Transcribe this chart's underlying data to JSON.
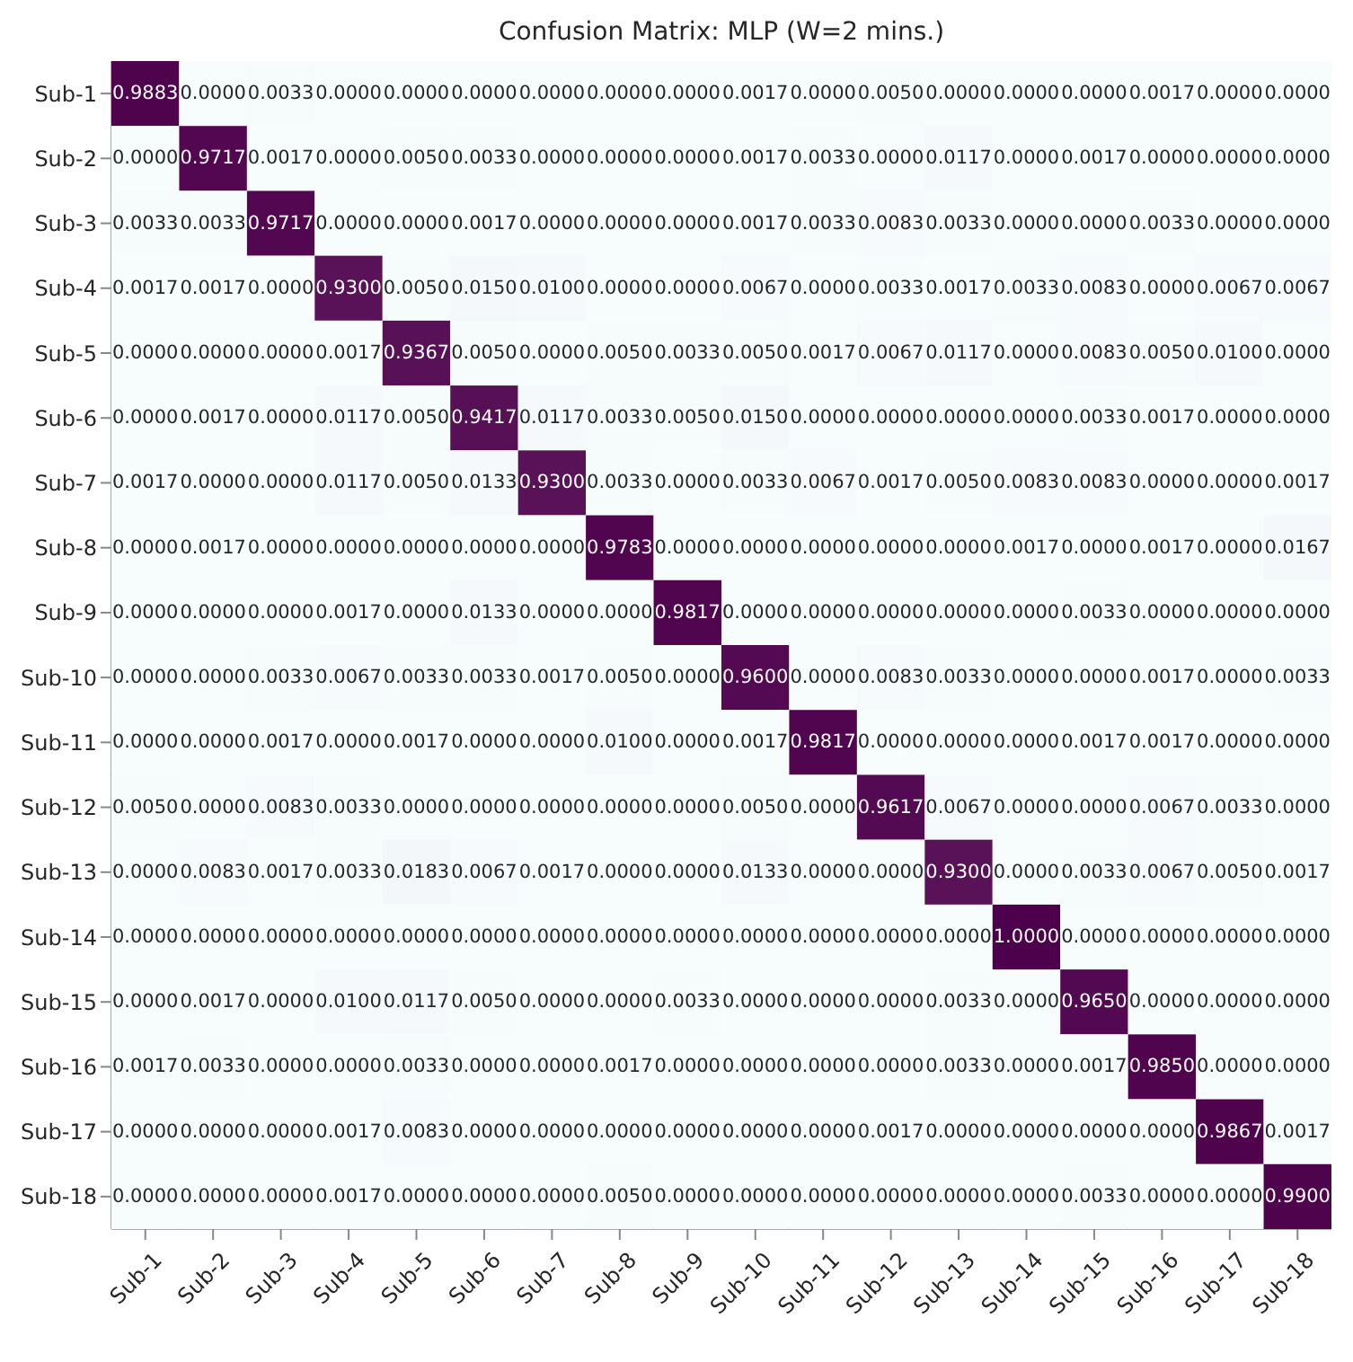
{
  "chart_data": {
    "type": "heatmap",
    "title": "Confusion Matrix:  MLP (W=2 mins.)",
    "categories": [
      "Sub-1",
      "Sub-2",
      "Sub-3",
      "Sub-4",
      "Sub-5",
      "Sub-6",
      "Sub-7",
      "Sub-8",
      "Sub-9",
      "Sub-10",
      "Sub-11",
      "Sub-12",
      "Sub-13",
      "Sub-14",
      "Sub-15",
      "Sub-16",
      "Sub-17",
      "Sub-18"
    ],
    "y_categories": [
      "Sub-1",
      "Sub-2",
      "Sub-3",
      "Sub-4",
      "Sub-5",
      "Sub-6",
      "Sub-7",
      "Sub-8",
      "Sub-9",
      "Sub-10",
      "Sub-11",
      "Sub-12",
      "Sub-13",
      "Sub-14",
      "Sub-15",
      "Sub-16",
      "Sub-17",
      "Sub-18"
    ],
    "colors": [
      "#f7fcfd",
      "#4d004b"
    ],
    "cell_labels": [
      [
        "0.9883",
        "0.0000",
        "0.0033",
        "0.0000",
        "0.0000",
        "0.0000",
        "0.0000",
        "0.0000",
        "0.0000",
        "0.0017",
        "0.0000",
        "0.0050",
        "0.0000",
        "0.0000",
        "0.0000",
        "0.0017",
        "0.0000",
        "0.0000"
      ],
      [
        "0.0000",
        "0.9717",
        "0.0017",
        "0.0000",
        "0.0050",
        "0.0033",
        "0.0000",
        "0.0000",
        "0.0000",
        "0.0017",
        "0.0033",
        "0.0000",
        "0.0117",
        "0.0000",
        "0.0017",
        "0.0000",
        "0.0000",
        "0.0000"
      ],
      [
        "0.0033",
        "0.0033",
        "0.9717",
        "0.0000",
        "0.0000",
        "0.0017",
        "0.0000",
        "0.0000",
        "0.0000",
        "0.0017",
        "0.0033",
        "0.0083",
        "0.0033",
        "0.0000",
        "0.0000",
        "0.0033",
        "0.0000",
        "0.0000"
      ],
      [
        "0.0017",
        "0.0017",
        "0.0000",
        "0.9300",
        "0.0050",
        "0.0150",
        "0.0100",
        "0.0000",
        "0.0000",
        "0.0067",
        "0.0000",
        "0.0033",
        "0.0017",
        "0.0033",
        "0.0083",
        "0.0000",
        "0.0067",
        "0.0067"
      ],
      [
        "0.0000",
        "0.0000",
        "0.0000",
        "0.0017",
        "0.9367",
        "0.0050",
        "0.0000",
        "0.0050",
        "0.0033",
        "0.0050",
        "0.0017",
        "0.0067",
        "0.0117",
        "0.0000",
        "0.0083",
        "0.0050",
        "0.0100",
        "0.0000"
      ],
      [
        "0.0000",
        "0.0017",
        "0.0000",
        "0.0117",
        "0.0050",
        "0.9417",
        "0.0117",
        "0.0033",
        "0.0050",
        "0.0150",
        "0.0000",
        "0.0000",
        "0.0000",
        "0.0000",
        "0.0033",
        "0.0017",
        "0.0000",
        "0.0000"
      ],
      [
        "0.0017",
        "0.0000",
        "0.0000",
        "0.0117",
        "0.0050",
        "0.0133",
        "0.9300",
        "0.0033",
        "0.0000",
        "0.0033",
        "0.0067",
        "0.0017",
        "0.0050",
        "0.0083",
        "0.0083",
        "0.0000",
        "0.0000",
        "0.0017"
      ],
      [
        "0.0000",
        "0.0017",
        "0.0000",
        "0.0000",
        "0.0000",
        "0.0000",
        "0.0000",
        "0.9783",
        "0.0000",
        "0.0000",
        "0.0000",
        "0.0000",
        "0.0000",
        "0.0017",
        "0.0000",
        "0.0017",
        "0.0000",
        "0.0167"
      ],
      [
        "0.0000",
        "0.0000",
        "0.0000",
        "0.0017",
        "0.0000",
        "0.0133",
        "0.0000",
        "0.0000",
        "0.9817",
        "0.0000",
        "0.0000",
        "0.0000",
        "0.0000",
        "0.0000",
        "0.0033",
        "0.0000",
        "0.0000",
        "0.0000"
      ],
      [
        "0.0000",
        "0.0000",
        "0.0033",
        "0.0067",
        "0.0033",
        "0.0033",
        "0.0017",
        "0.0050",
        "0.0000",
        "0.9600",
        "0.0000",
        "0.0083",
        "0.0033",
        "0.0000",
        "0.0000",
        "0.0017",
        "0.0000",
        "0.0033"
      ],
      [
        "0.0000",
        "0.0000",
        "0.0017",
        "0.0000",
        "0.0017",
        "0.0000",
        "0.0000",
        "0.0100",
        "0.0000",
        "0.0017",
        "0.9817",
        "0.0000",
        "0.0000",
        "0.0000",
        "0.0017",
        "0.0017",
        "0.0000",
        "0.0000"
      ],
      [
        "0.0050",
        "0.0000",
        "0.0083",
        "0.0033",
        "0.0000",
        "0.0000",
        "0.0000",
        "0.0000",
        "0.0000",
        "0.0050",
        "0.0000",
        "0.9617",
        "0.0067",
        "0.0000",
        "0.0000",
        "0.0067",
        "0.0033",
        "0.0000"
      ],
      [
        "0.0000",
        "0.0083",
        "0.0017",
        "0.0033",
        "0.0183",
        "0.0067",
        "0.0017",
        "0.0000",
        "0.0000",
        "0.0133",
        "0.0000",
        "0.0000",
        "0.9300",
        "0.0000",
        "0.0033",
        "0.0067",
        "0.0050",
        "0.0017"
      ],
      [
        "0.0000",
        "0.0000",
        "0.0000",
        "0.0000",
        "0.0000",
        "0.0000",
        "0.0000",
        "0.0000",
        "0.0000",
        "0.0000",
        "0.0000",
        "0.0000",
        "0.0000",
        "1.0000",
        "0.0000",
        "0.0000",
        "0.0000",
        "0.0000"
      ],
      [
        "0.0000",
        "0.0017",
        "0.0000",
        "0.0100",
        "0.0117",
        "0.0050",
        "0.0000",
        "0.0000",
        "0.0033",
        "0.0000",
        "0.0000",
        "0.0000",
        "0.0033",
        "0.0000",
        "0.9650",
        "0.0000",
        "0.0000",
        "0.0000"
      ],
      [
        "0.0017",
        "0.0033",
        "0.0000",
        "0.0000",
        "0.0033",
        "0.0000",
        "0.0000",
        "0.0017",
        "0.0000",
        "0.0000",
        "0.0000",
        "0.0000",
        "0.0033",
        "0.0000",
        "0.0017",
        "0.9850",
        "0.0000",
        "0.0000"
      ],
      [
        "0.0000",
        "0.0000",
        "0.0000",
        "0.0017",
        "0.0083",
        "0.0000",
        "0.0000",
        "0.0000",
        "0.0000",
        "0.0000",
        "0.0000",
        "0.0017",
        "0.0000",
        "0.0000",
        "0.0000",
        "0.0000",
        "0.9867",
        "0.0017"
      ],
      [
        "0.0000",
        "0.0000",
        "0.0000",
        "0.0017",
        "0.0000",
        "0.0000",
        "0.0000",
        "0.0050",
        "0.0000",
        "0.0000",
        "0.0000",
        "0.0000",
        "0.0000",
        "0.0000",
        "0.0033",
        "0.0000",
        "0.0000",
        "0.9900"
      ]
    ],
    "data_labels": true,
    "cells": [
      [
        0.9883,
        0,
        0.0033,
        0,
        0,
        0,
        0,
        0,
        0,
        0.0017,
        0,
        0.005,
        0,
        0,
        0,
        0.0017,
        0,
        0
      ],
      [
        0,
        0.9717,
        0.0017,
        0,
        0.005,
        0.0033,
        0,
        0,
        0,
        0.0017,
        0.0033,
        0,
        0.0117,
        0,
        0.0017,
        0,
        0,
        0
      ],
      [
        0.0033,
        0.0033,
        0.9717,
        0,
        0,
        0.0017,
        0,
        0,
        0,
        0.0017,
        0.0033,
        0.0083,
        0.0033,
        0,
        0,
        0.0033,
        0,
        0
      ],
      [
        0.0017,
        0.0017,
        0,
        0.93,
        0.005,
        0.015,
        0.01,
        0,
        0,
        0.0067,
        0,
        0.0033,
        0.0017,
        0.0033,
        0.0083,
        0,
        0.0067,
        0.0067
      ],
      [
        0,
        0,
        0,
        0.0017,
        0.9367,
        0.005,
        0,
        0.005,
        0.0033,
        0.005,
        0.0017,
        0.0067,
        0.0117,
        0,
        0.0083,
        0.005,
        0.01,
        0
      ],
      [
        0,
        0.0017,
        0,
        0.0117,
        0.005,
        0.9417,
        0.0117,
        0.0033,
        0.005,
        0.015,
        0,
        0,
        0,
        0,
        0.0033,
        0.0017,
        0,
        0
      ],
      [
        0.0017,
        0,
        0,
        0.0117,
        0.005,
        0.0133,
        0.93,
        0.0033,
        0,
        0.0033,
        0.0067,
        0.0017,
        0.005,
        0.0083,
        0.0083,
        0,
        0,
        0.0017
      ],
      [
        0,
        0.0017,
        0,
        0,
        0,
        0,
        0,
        0.9783,
        0,
        0,
        0,
        0,
        0,
        0.0017,
        0,
        0.0017,
        0,
        0.0167
      ],
      [
        0,
        0,
        0,
        0.0017,
        0,
        0.0133,
        0,
        0,
        0.9817,
        0,
        0,
        0,
        0,
        0,
        0.0033,
        0,
        0,
        0
      ],
      [
        0,
        0,
        0.0033,
        0.0067,
        0.0033,
        0.0033,
        0.0017,
        0.005,
        0,
        0.96,
        0,
        0.0083,
        0.0033,
        0,
        0,
        0.0017,
        0,
        0.0033
      ],
      [
        0,
        0,
        0.0017,
        0,
        0.0017,
        0,
        0,
        0.01,
        0,
        0.0017,
        0.9817,
        0,
        0,
        0,
        0.0017,
        0.0017,
        0,
        0
      ],
      [
        0.005,
        0,
        0.0083,
        0.0033,
        0,
        0,
        0,
        0,
        0,
        0.005,
        0,
        0.9617,
        0.0067,
        0,
        0,
        0.0067,
        0.0033,
        0
      ],
      [
        0,
        0.0083,
        0.0017,
        0.0033,
        0.0183,
        0.0067,
        0.0017,
        0,
        0,
        0.0133,
        0,
        0,
        0.93,
        0,
        0.0033,
        0.0067,
        0.005,
        0.0017
      ],
      [
        0,
        0,
        0,
        0,
        0,
        0,
        0,
        0,
        0,
        0,
        0,
        0,
        0,
        1.0,
        0,
        0,
        0,
        0
      ],
      [
        0,
        0.0017,
        0,
        0.01,
        0.0117,
        0.005,
        0,
        0,
        0.0033,
        0,
        0,
        0,
        0.0033,
        0,
        0.965,
        0,
        0,
        0
      ],
      [
        0.0017,
        0.0033,
        0,
        0,
        0.0033,
        0,
        0,
        0.0017,
        0,
        0,
        0,
        0,
        0.0033,
        0,
        0.0017,
        0.985,
        0,
        0
      ],
      [
        0,
        0,
        0,
        0.0017,
        0.0083,
        0,
        0,
        0,
        0,
        0,
        0,
        0.0017,
        0,
        0,
        0,
        0,
        0.9867,
        0.0017
      ],
      [
        0,
        0,
        0,
        0.0017,
        0,
        0,
        0,
        0.005,
        0,
        0,
        0,
        0,
        0,
        0,
        0.0033,
        0,
        0,
        0.99
      ]
    ]
  }
}
